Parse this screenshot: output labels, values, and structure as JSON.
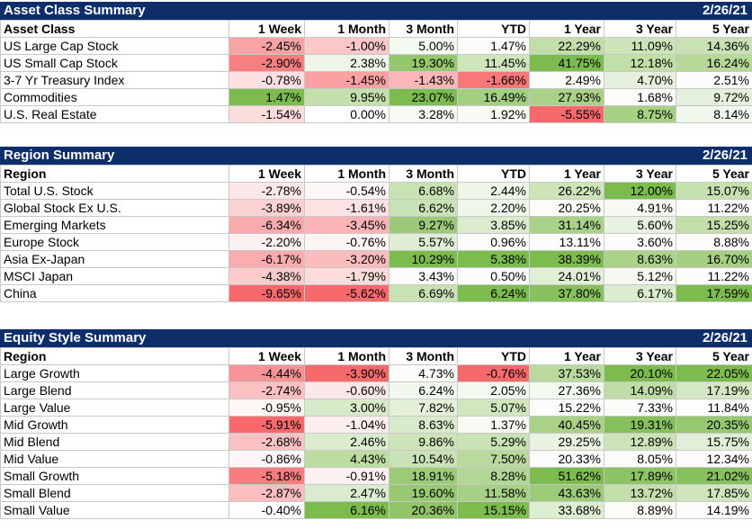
{
  "sections": [
    {
      "title": "Asset Class Summary",
      "date": "2/26/21",
      "headers": [
        "Asset Class",
        "1 Week",
        "1 Month",
        "3 Month",
        "YTD",
        "1 Year",
        "3 Year",
        "5 Year"
      ],
      "rows": [
        {
          "label": "US Large Cap Stock",
          "values": [
            "-2.45%",
            "-1.00%",
            "5.00%",
            "1.47%",
            "22.29%",
            "11.09%",
            "14.36%"
          ],
          "colors": [
            "#f9a3a5",
            "#fcc7c9",
            "#f4f9f0",
            "#fcfdfb",
            "#c2dea9",
            "#cde4b9",
            "#c9e2b4"
          ]
        },
        {
          "label": "US Small Cap Stock",
          "values": [
            "-2.90%",
            "2.38%",
            "19.30%",
            "11.45%",
            "41.75%",
            "12.18%",
            "16.24%"
          ],
          "colors": [
            "#f97e80",
            "#edf5e6",
            "#95c86d",
            "#cfe6bc",
            "#7cbc4e",
            "#c2dea9",
            "#b6d899"
          ]
        },
        {
          "label": "3-7 Yr Treasury Index",
          "values": [
            "-0.78%",
            "-1.45%",
            "-1.43%",
            "-1.66%",
            "2.49%",
            "4.70%",
            "2.51%"
          ],
          "colors": [
            "#fde0e1",
            "#fba1a3",
            "#fbb6b8",
            "#f8787a",
            "#fbfdf9",
            "#e6f1dd",
            "#fcfdfb"
          ]
        },
        {
          "label": "Commodities",
          "values": [
            "1.47%",
            "9.95%",
            "23.07%",
            "16.49%",
            "27.93%",
            "1.68%",
            "9.72%"
          ],
          "colors": [
            "#7cbc4e",
            "#c4dfac",
            "#7cbc4e",
            "#a3cf81",
            "#a9d288",
            "#fcfdfb",
            "#e5f0dc"
          ]
        },
        {
          "label": "U.S. Real Estate",
          "values": [
            "-1.54%",
            "0.00%",
            "3.28%",
            "1.92%",
            "-5.55%",
            "8.75%",
            "8.14%"
          ],
          "colors": [
            "#fcdcdd",
            "#ffffff",
            "#f7faf4",
            "#f8fbf5",
            "#f8696b",
            "#a7d185",
            "#f2f8ed"
          ]
        }
      ]
    },
    {
      "title": "Region Summary",
      "date": "2/26/21",
      "headers": [
        "Region",
        "1 Week",
        "1 Month",
        "3 Month",
        "YTD",
        "1 Year",
        "3 Year",
        "5 Year"
      ],
      "rows": [
        {
          "label": "Total U.S. Stock",
          "values": [
            "-2.78%",
            "-0.54%",
            "6.68%",
            "2.44%",
            "26.22%",
            "12.00%",
            "15.07%"
          ],
          "colors": [
            "#fee7e8",
            "#fdf6f6",
            "#c9e2b4",
            "#eef6e8",
            "#cde4b9",
            "#7cbc4e",
            "#c6e0af"
          ]
        },
        {
          "label": "Global Stock Ex U.S.",
          "values": [
            "-3.89%",
            "-1.61%",
            "6.62%",
            "2.20%",
            "20.25%",
            "4.91%",
            "11.22%"
          ],
          "colors": [
            "#fcd1d2",
            "#fde2e3",
            "#cae3b6",
            "#f0f7ea",
            "#fbfdf9",
            "#f6faf2",
            "#fcfdfb"
          ]
        },
        {
          "label": "Emerging Markets",
          "values": [
            "-6.34%",
            "-3.45%",
            "9.27%",
            "3.85%",
            "31.14%",
            "5.60%",
            "15.25%"
          ],
          "colors": [
            "#fbaaac",
            "#fbb3b5",
            "#9cc979",
            "#dbecce",
            "#a9d288",
            "#e8f2e0",
            "#c2dea9"
          ]
        },
        {
          "label": "Europe Stock",
          "values": [
            "-2.20%",
            "-0.76%",
            "5.57%",
            "0.96%",
            "13.11%",
            "3.60%",
            "8.88%"
          ],
          "colors": [
            "#fef1f1",
            "#fdf4f4",
            "#deeed2",
            "#fcfdfb",
            "#fcfdfb",
            "#fcfdfb",
            "#fcfdfb"
          ]
        },
        {
          "label": "Asia Ex-Japan",
          "values": [
            "-6.17%",
            "-3.20%",
            "10.29%",
            "5.38%",
            "38.39%",
            "8.63%",
            "16.70%"
          ],
          "colors": [
            "#fbacae",
            "#fbbcbd",
            "#7cbc4e",
            "#7cbc4e",
            "#7cbc4e",
            "#aad289",
            "#a5d083"
          ]
        },
        {
          "label": "MSCI Japan",
          "values": [
            "-4.38%",
            "-1.79%",
            "3.43%",
            "0.50%",
            "24.01%",
            "5.12%",
            "11.22%"
          ],
          "colors": [
            "#fdcbcc",
            "#fedcdc",
            "#fcfdfb",
            "#fcfdfb",
            "#e2efd7",
            "#f5f9f1",
            "#fcfdfb"
          ]
        },
        {
          "label": "China",
          "values": [
            "-9.65%",
            "-5.62%",
            "6.69%",
            "6.24%",
            "37.80%",
            "6.17%",
            "17.59%"
          ],
          "colors": [
            "#f8696b",
            "#f8696b",
            "#c9e2b4",
            "#7cbc4e",
            "#87c15d",
            "#dbecce",
            "#7cbc4e"
          ]
        }
      ]
    },
    {
      "title": "Equity Style Summary",
      "date": "2/26/21",
      "headers": [
        "Region",
        "1 Week",
        "1 Month",
        "3 Month",
        "YTD",
        "1 Year",
        "3 Year",
        "5 Year"
      ],
      "rows": [
        {
          "label": "Large Growth",
          "values": [
            "-4.44%",
            "-3.90%",
            "4.73%",
            "-0.76%",
            "37.53%",
            "20.10%",
            "22.05%"
          ],
          "colors": [
            "#f99395",
            "#f8696b",
            "#fcfdfb",
            "#f8696b",
            "#b9d99e",
            "#7cbc4e",
            "#7cbc4e"
          ]
        },
        {
          "label": "Large Blend",
          "values": [
            "-2.74%",
            "-0.60%",
            "6.24%",
            "2.05%",
            "27.36%",
            "14.09%",
            "17.19%"
          ],
          "colors": [
            "#fbc0c2",
            "#fde8e9",
            "#f2f8ed",
            "#f4f9f0",
            "#f4f9f0",
            "#c1dda7",
            "#d4e8c4"
          ]
        },
        {
          "label": "Large Value",
          "values": [
            "-0.95%",
            "3.00%",
            "7.82%",
            "5.07%",
            "15.22%",
            "7.33%",
            "11.84%"
          ],
          "colors": [
            "#fef5f5",
            "#d7eac7",
            "#e3efd9",
            "#d0e6bd",
            "#fcfdfb",
            "#fcfdfb",
            "#fcfdfb"
          ]
        },
        {
          "label": "Mid Growth",
          "values": [
            "-5.91%",
            "-1.04%",
            "8.63%",
            "1.37%",
            "40.45%",
            "19.31%",
            "20.35%"
          ],
          "colors": [
            "#f8696b",
            "#fdeeee",
            "#d8ebca",
            "#f8fbf5",
            "#a9d288",
            "#85c05b",
            "#96c86f"
          ]
        },
        {
          "label": "Mid Blend",
          "values": [
            "-2.68%",
            "2.46%",
            "9.86%",
            "5.29%",
            "29.25%",
            "12.89%",
            "15.75%"
          ],
          "colors": [
            "#fbc2c3",
            "#dbecce",
            "#cde4b9",
            "#cae3b6",
            "#eaf3e2",
            "#cbe3b7",
            "#e1eed7"
          ]
        },
        {
          "label": "Mid Value",
          "values": [
            "-0.86%",
            "4.43%",
            "10.54%",
            "7.50%",
            "20.33%",
            "8.05%",
            "12.34%"
          ],
          "colors": [
            "#fef6f6",
            "#bddc9f",
            "#cae3b6",
            "#b9d99e",
            "#fcfdfb",
            "#fcfdfb",
            "#fcfdfb"
          ]
        },
        {
          "label": "Small Growth",
          "values": [
            "-5.18%",
            "-0.91%",
            "18.91%",
            "8.28%",
            "51.62%",
            "17.89%",
            "21.02%"
          ],
          "colors": [
            "#f97d7f",
            "#fdf0f0",
            "#9ccb78",
            "#b2d695",
            "#7cbc4e",
            "#8cc365",
            "#87c15d"
          ]
        },
        {
          "label": "Small Blend",
          "values": [
            "-2.87%",
            "2.47%",
            "19.60%",
            "11.58%",
            "43.63%",
            "13.72%",
            "17.85%"
          ],
          "colors": [
            "#fbbdbf",
            "#dbecce",
            "#97c970",
            "#a6d085",
            "#9ccb78",
            "#c3dfab",
            "#cfe6bc"
          ]
        },
        {
          "label": "Small Value",
          "values": [
            "-0.40%",
            "6.16%",
            "20.36%",
            "15.15%",
            "33.68%",
            "8.89%",
            "14.19%"
          ],
          "colors": [
            "#fffcfc",
            "#7cbc4e",
            "#90c567",
            "#7cbc4e",
            "#ddedd0",
            "#fafcf7",
            "#fcfdfb"
          ]
        }
      ]
    }
  ]
}
